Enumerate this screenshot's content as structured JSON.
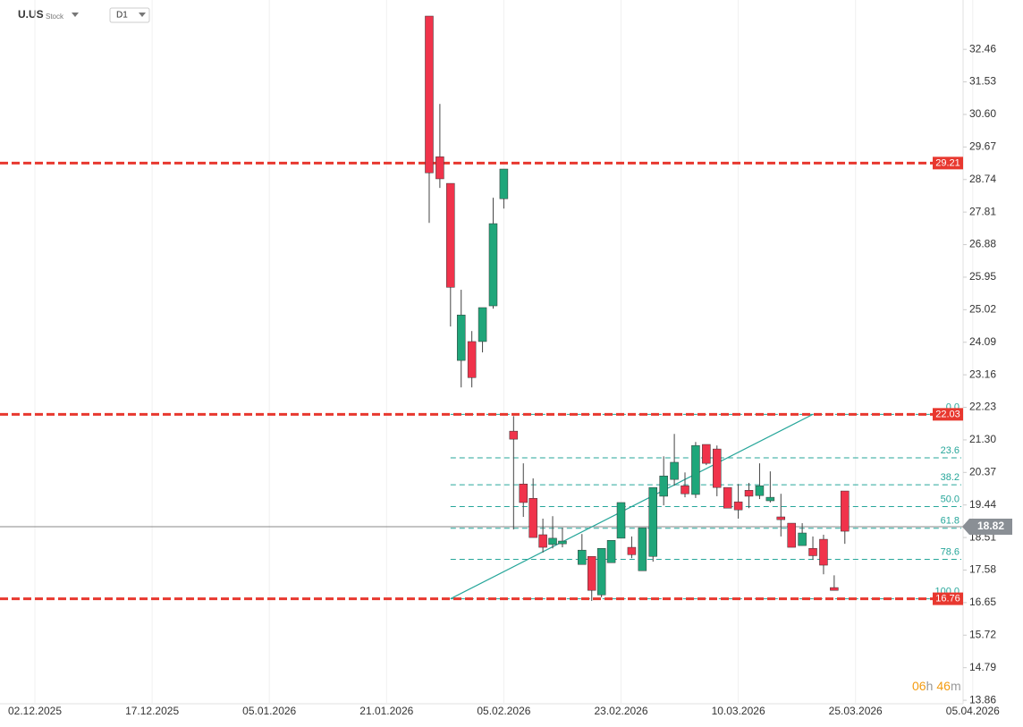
{
  "header": {
    "symbol": "U.US",
    "asset_type": "Stock",
    "timeframe": "D1"
  },
  "countdown": {
    "hours": "06",
    "hours_unit": "h",
    "minutes": "46",
    "minutes_unit": "m"
  },
  "chart_data": {
    "type": "candlestick",
    "ylim": [
      13.76,
      33.41
    ],
    "yticks": [
      32.46,
      31.53,
      {
        "value": 30.6,
        "label": "30.60"
      },
      29.67,
      28.74,
      27.81,
      26.88,
      25.95,
      25.02,
      24.09,
      23.16,
      22.23,
      {
        "value": 21.3,
        "label": "21.30"
      },
      20.37,
      19.44,
      18.51,
      17.58,
      16.65,
      15.72,
      14.79,
      13.86
    ],
    "xticks": [
      {
        "value": "2025-12-02",
        "label": "02.12.2025"
      },
      {
        "value": "2025-12-17",
        "label": "17.12.2025"
      },
      {
        "value": "2026-01-05",
        "label": "05.01.2026"
      },
      {
        "value": "2026-01-21",
        "label": "21.01.2026"
      },
      {
        "value": "2026-02-05",
        "label": "05.02.2026"
      },
      {
        "value": "2026-02-23",
        "label": "23.02.2026"
      },
      {
        "value": "2026-03-10",
        "label": "10.03.2026"
      },
      {
        "value": "2026-03-25",
        "label": "25.03.2026"
      },
      {
        "value": "2026-04-05",
        "label": "05.04.2026"
      }
    ],
    "grid": true,
    "up_color": "#1fa67a",
    "down_color": "#f0334b",
    "x": [
      "2026-01-27",
      "2026-01-28",
      "2026-01-29",
      "2026-01-30",
      "2026-02-02",
      "2026-02-03",
      "2026-02-04",
      "2026-02-05",
      "2026-02-06",
      "2026-02-09",
      "2026-02-10",
      "2026-02-11",
      "2026-02-12",
      "2026-02-13",
      "2026-02-17",
      "2026-02-18",
      "2026-02-19",
      "2026-02-20",
      "2026-02-23",
      "2026-02-24",
      "2026-02-25",
      "2026-02-26",
      "2026-02-27",
      "2026-03-02",
      "2026-03-03",
      "2026-03-04",
      "2026-03-05",
      "2026-03-06",
      "2026-03-09",
      "2026-03-10",
      "2026-03-11",
      "2026-03-12",
      "2026-03-13",
      "2026-03-16",
      "2026-03-17",
      "2026-03-18",
      "2026-03-19",
      "2026-03-20",
      "2026-03-23",
      "2026-03-24"
    ],
    "open": [
      33.41,
      29.39,
      28.63,
      23.57,
      24.11,
      24.11,
      25.13,
      28.19,
      21.55,
      20.04,
      19.63,
      18.59,
      18.31,
      18.33,
      17.74,
      17.97,
      16.87,
      17.79,
      18.49,
      18.23,
      17.56,
      17.97,
      19.69,
      20.17,
      19.99,
      19.74,
      21.17,
      21.04,
      19.94,
      19.53,
      19.86,
      19.71,
      19.56,
      19.1,
      18.92,
      18.28,
      18.2,
      18.46,
      17.08,
      19.84
    ],
    "high": [
      33.41,
      30.9,
      28.63,
      25.59,
      24.41,
      25.08,
      28.22,
      29.04,
      21.98,
      20.63,
      20.2,
      19.05,
      19.12,
      18.79,
      18.61,
      17.97,
      18.2,
      18.43,
      19.51,
      18.54,
      18.79,
      19.94,
      20.83,
      21.47,
      20.37,
      21.24,
      21.17,
      21.14,
      19.94,
      20.04,
      20.07,
      20.63,
      20.4,
      19.76,
      18.92,
      18.92,
      18.54,
      18.59,
      17.43,
      19.84
    ],
    "low": [
      27.5,
      28.5,
      24.54,
      22.8,
      22.8,
      23.8,
      25.05,
      27.91,
      18.74,
      19.1,
      18.51,
      18.08,
      18.2,
      18.23,
      17.74,
      16.7,
      16.8,
      17.79,
      18.49,
      17.92,
      17.56,
      17.82,
      19.43,
      19.99,
      19.66,
      19.64,
      20.58,
      19.69,
      19.35,
      19.05,
      19.35,
      19.61,
      19.51,
      18.54,
      18.23,
      18.28,
      17.87,
      17.46,
      17.0,
      18.33
    ],
    "close": [
      28.93,
      28.76,
      25.66,
      24.87,
      23.08,
      25.08,
      27.48,
      29.04,
      21.32,
      19.51,
      18.51,
      18.23,
      18.49,
      18.41,
      18.15,
      17.0,
      18.2,
      18.43,
      19.51,
      18.02,
      18.79,
      19.94,
      20.27,
      20.66,
      19.76,
      21.14,
      20.63,
      19.94,
      19.35,
      19.3,
      19.69,
      19.99,
      19.66,
      19.02,
      18.23,
      18.64,
      17.99,
      17.72,
      17.0,
      18.69
    ],
    "price_lines": [
      29.21,
      22.03,
      16.76
    ],
    "price_line_color": "#e8382f",
    "current_price": 18.82,
    "trendline": {
      "x": [
        "2026-01-29",
        "2026-03-19"
      ],
      "values": [
        16.76,
        22.03
      ],
      "color": "#26a69a"
    },
    "fibonacci": {
      "start": "2026-01-29",
      "high": 22.03,
      "low": 16.76,
      "color": "#26a69a",
      "levels": [
        {
          "value": 0,
          "label": "0.0"
        },
        23.6,
        38.2,
        {
          "value": 50,
          "label": "50.0"
        },
        61.8,
        78.6,
        {
          "value": 100,
          "label": "100.0"
        }
      ]
    }
  }
}
